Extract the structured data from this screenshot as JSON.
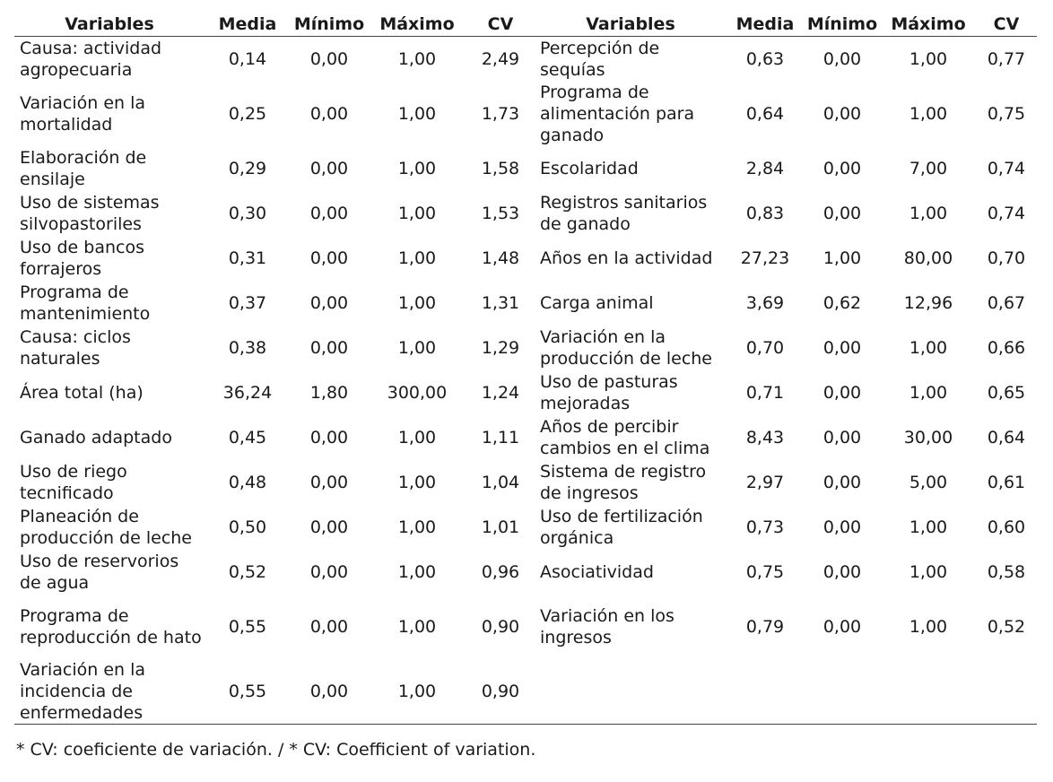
{
  "headers": [
    "Variables",
    "Media",
    "Mínimo",
    "Máximo",
    "CV",
    "Variables",
    "Media",
    "Mínimo",
    "Máximo",
    "CV"
  ],
  "rows": [
    {
      "left": [
        "Causa: actividad agropecuaria",
        "0,14",
        "0,00",
        "1,00",
        "2,49"
      ],
      "right": [
        "Percepción de sequías",
        "0,63",
        "0,00",
        "1,00",
        "0,77"
      ]
    },
    {
      "left": [
        "Variación en la mortalidad",
        "0,25",
        "0,00",
        "1,00",
        "1,73"
      ],
      "right": [
        "Programa de alimentación para ganado",
        "0,64",
        "0,00",
        "1,00",
        "0,75"
      ]
    },
    {
      "left": [
        "Elaboración de ensilaje",
        "0,29",
        "0,00",
        "1,00",
        "1,58"
      ],
      "right": [
        "Escolaridad",
        "2,84",
        "0,00",
        "7,00",
        "0,74"
      ]
    },
    {
      "left": [
        "Uso de sistemas silvopastoriles",
        "0,30",
        "0,00",
        "1,00",
        "1,53"
      ],
      "right": [
        "Registros sanitarios de ganado",
        "0,83",
        "0,00",
        "1,00",
        "0,74"
      ]
    },
    {
      "left": [
        "Uso de bancos forrajeros",
        "0,31",
        "0,00",
        "1,00",
        "1,48"
      ],
      "right": [
        "Años en la actividad",
        "27,23",
        "1,00",
        "80,00",
        "0,70"
      ]
    },
    {
      "left": [
        "Programa de mantenimiento",
        "0,37",
        "0,00",
        "1,00",
        "1,31"
      ],
      "right": [
        "Carga animal",
        "3,69",
        "0,62",
        "12,96",
        "0,67"
      ]
    },
    {
      "left": [
        "Causa: ciclos naturales",
        "0,38",
        "0,00",
        "1,00",
        "1,29"
      ],
      "right": [
        "Variación en la producción de leche",
        "0,70",
        "0,00",
        "1,00",
        "0,66"
      ]
    },
    {
      "left": [
        "Área total (ha)",
        "36,24",
        "1,80",
        "300,00",
        "1,24"
      ],
      "right": [
        "Uso de pasturas mejoradas",
        "0,71",
        "0,00",
        "1,00",
        "0,65"
      ]
    },
    {
      "left": [
        "Ganado adaptado",
        "0,45",
        "0,00",
        "1,00",
        "1,11"
      ],
      "right": [
        "Años de percibir cambios en el clima",
        "8,43",
        "0,00",
        "30,00",
        "0,64"
      ]
    },
    {
      "left": [
        "Uso de riego tecnificado",
        "0,48",
        "0,00",
        "1,00",
        "1,04"
      ],
      "right": [
        "Sistema de registro de ingresos",
        "2,97",
        "0,00",
        "5,00",
        "0,61"
      ]
    },
    {
      "left": [
        "Planeación de producción de leche",
        "0,50",
        "0,00",
        "1,00",
        "1,01"
      ],
      "right": [
        "Uso de fertilización orgánica",
        "0,73",
        "0,00",
        "1,00",
        "0,60"
      ]
    },
    {
      "left": [
        "Uso de reservorios de agua",
        "0,52",
        "0,00",
        "1,00",
        "0,96"
      ],
      "right": [
        "Asociatividad",
        "0,75",
        "0,00",
        "1,00",
        "0,58"
      ]
    },
    {
      "left": [
        "Programa de reproducción de hato",
        "0,55",
        "0,00",
        "1,00",
        "0,90"
      ],
      "right": [
        "Variación en los ingresos",
        "0,79",
        "0,00",
        "1,00",
        "0,52"
      ]
    },
    {
      "left": [
        "Variación en la incidencia de enfermedades",
        "0,55",
        "0,00",
        "1,00",
        "0,90"
      ],
      "right": [
        "",
        "",
        "",
        "",
        ""
      ]
    }
  ],
  "footnote": "* CV: coeficiente de variación. / * CV: Coefficient of variation."
}
